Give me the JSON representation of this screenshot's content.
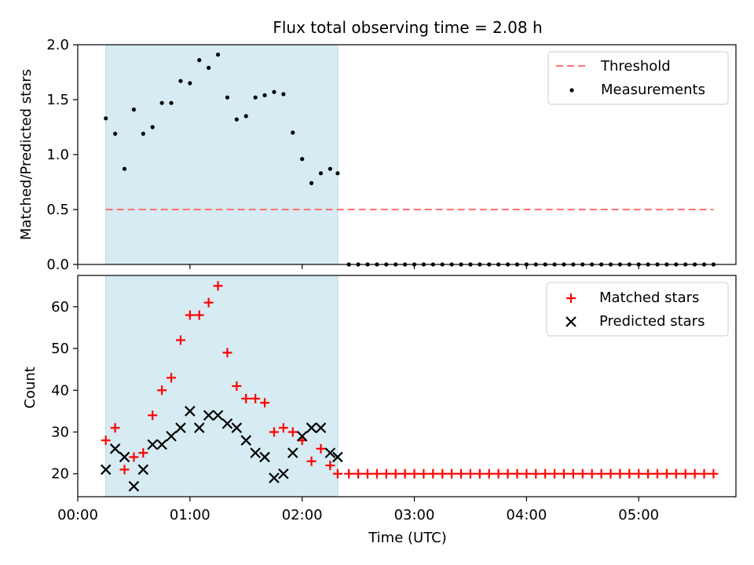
{
  "title": "Flux total observing time = 2.08 h",
  "colors": {
    "shade": "#add8e6",
    "threshold": "#ff7070",
    "matched": "#ff0000",
    "predicted": "#000000",
    "measurements": "#000000"
  },
  "chart_data": [
    {
      "type": "scatter",
      "ylabel": "Matched/Predicted stars",
      "xlim": [
        "00:00",
        "05:52"
      ],
      "ylim": [
        0,
        2.0
      ],
      "yticks": [
        0.0,
        0.5,
        1.0,
        1.5,
        2.0
      ],
      "ytick_labels": [
        "0.0",
        "0.5",
        "1.0",
        "1.5",
        "2.0"
      ],
      "shaded_span": [
        "00:15",
        "02:19"
      ],
      "legend": {
        "placement": "upper right",
        "entries": [
          "Threshold",
          "Measurements"
        ]
      },
      "threshold": {
        "name": "Threshold",
        "value": 0.5,
        "x_range": [
          "00:15",
          "05:40"
        ],
        "style": "dashed"
      },
      "measurements": {
        "name": "Measurements",
        "x": [
          "00:15",
          "00:20",
          "00:25",
          "00:30",
          "00:35",
          "00:40",
          "00:45",
          "00:50",
          "00:55",
          "01:00",
          "01:05",
          "01:10",
          "01:15",
          "01:20",
          "01:25",
          "01:30",
          "01:35",
          "01:40",
          "01:45",
          "01:50",
          "01:55",
          "02:00",
          "02:05",
          "02:10",
          "02:15",
          "02:19",
          "02:25",
          "02:30",
          "02:35",
          "02:40",
          "02:45",
          "02:50",
          "02:55",
          "03:00",
          "03:05",
          "03:10",
          "03:15",
          "03:20",
          "03:25",
          "03:30",
          "03:35",
          "03:40",
          "03:45",
          "03:50",
          "03:55",
          "04:00",
          "04:05",
          "04:10",
          "04:15",
          "04:20",
          "04:25",
          "04:30",
          "04:35",
          "04:40",
          "04:45",
          "04:50",
          "04:55",
          "05:00",
          "05:05",
          "05:10",
          "05:15",
          "05:20",
          "05:25",
          "05:30",
          "05:35",
          "05:40"
        ],
        "y": [
          1.33,
          1.19,
          0.87,
          1.41,
          1.19,
          1.25,
          1.47,
          1.47,
          1.67,
          1.65,
          1.86,
          1.79,
          1.91,
          1.52,
          1.32,
          1.35,
          1.52,
          1.54,
          1.57,
          1.55,
          1.2,
          0.96,
          0.74,
          0.83,
          0.87,
          0.83,
          0,
          0,
          0,
          0,
          0,
          0,
          0,
          0,
          0,
          0,
          0,
          0,
          0,
          0,
          0,
          0,
          0,
          0,
          0,
          0,
          0,
          0,
          0,
          0,
          0,
          0,
          0,
          0,
          0,
          0,
          0,
          0,
          0,
          0,
          0,
          0,
          0,
          0,
          0,
          0
        ]
      }
    },
    {
      "type": "scatter",
      "xlabel": "Time (UTC)",
      "ylabel": "Count",
      "xlim": [
        "00:00",
        "05:52"
      ],
      "ylim": [
        14.5,
        67.5
      ],
      "yticks": [
        20,
        30,
        40,
        50,
        60
      ],
      "ytick_labels": [
        "20",
        "30",
        "40",
        "50",
        "60"
      ],
      "xticks": [
        "00:00",
        "01:00",
        "02:00",
        "03:00",
        "04:00",
        "05:00"
      ],
      "xtick_labels": [
        "00:00",
        "01:00",
        "02:00",
        "03:00",
        "04:00",
        "05:00"
      ],
      "shaded_span": [
        "00:15",
        "02:19"
      ],
      "legend": {
        "placement": "upper right",
        "entries": [
          "Matched stars",
          "Predicted stars"
        ]
      },
      "series": [
        {
          "name": "Matched stars",
          "marker": "plus",
          "x": [
            "00:15",
            "00:20",
            "00:25",
            "00:30",
            "00:35",
            "00:40",
            "00:45",
            "00:50",
            "00:55",
            "01:00",
            "01:05",
            "01:10",
            "01:15",
            "01:20",
            "01:25",
            "01:30",
            "01:35",
            "01:40",
            "01:45",
            "01:50",
            "01:55",
            "02:00",
            "02:05",
            "02:10",
            "02:15",
            "02:19",
            "02:25",
            "02:30",
            "02:35",
            "02:40",
            "02:45",
            "02:50",
            "02:55",
            "03:00",
            "03:05",
            "03:10",
            "03:15",
            "03:20",
            "03:25",
            "03:30",
            "03:35",
            "03:40",
            "03:45",
            "03:50",
            "03:55",
            "04:00",
            "04:05",
            "04:10",
            "04:15",
            "04:20",
            "04:25",
            "04:30",
            "04:35",
            "04:40",
            "04:45",
            "04:50",
            "04:55",
            "05:00",
            "05:05",
            "05:10",
            "05:15",
            "05:20",
            "05:25",
            "05:30",
            "05:35",
            "05:40"
          ],
          "values": [
            28,
            31,
            21,
            24,
            25,
            34,
            40,
            43,
            52,
            58,
            58,
            61,
            65,
            49,
            41,
            38,
            38,
            37,
            30,
            31,
            30,
            28,
            23,
            26,
            22,
            20,
            20,
            20,
            20,
            20,
            20,
            20,
            20,
            20,
            20,
            20,
            20,
            20,
            20,
            20,
            20,
            20,
            20,
            20,
            20,
            20,
            20,
            20,
            20,
            20,
            20,
            20,
            20,
            20,
            20,
            20,
            20,
            20,
            20,
            20,
            20,
            20,
            20,
            20,
            20,
            20
          ]
        },
        {
          "name": "Predicted stars",
          "marker": "x",
          "x": [
            "00:15",
            "00:20",
            "00:25",
            "00:30",
            "00:35",
            "00:40",
            "00:45",
            "00:50",
            "00:55",
            "01:00",
            "01:05",
            "01:10",
            "01:15",
            "01:20",
            "01:25",
            "01:30",
            "01:35",
            "01:40",
            "01:45",
            "01:50",
            "01:55",
            "02:00",
            "02:05",
            "02:10",
            "02:15",
            "02:19"
          ],
          "values": [
            21,
            26,
            24,
            17,
            21,
            27,
            27,
            29,
            31,
            35,
            31,
            34,
            34,
            32,
            31,
            28,
            25,
            24,
            19,
            20,
            25,
            29,
            31,
            31,
            25,
            24
          ]
        }
      ]
    }
  ]
}
